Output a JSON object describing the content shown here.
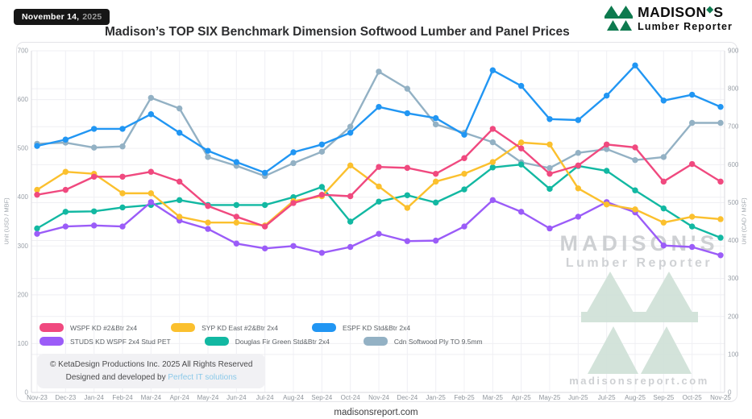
{
  "badge": {
    "date": "November 14,",
    "year": "2025"
  },
  "title": "Madison’s TOP SIX Benchmark Dimension Softwood Lumber and Panel Prices",
  "brand": {
    "name_pre": "MADISON",
    "apostrophe": "◆",
    "name_post": "S",
    "subtitle": "Lumber Reporter",
    "green": "#0E7A4F"
  },
  "watermark": {
    "line1": "MADISON'S",
    "line2": "Lumber Reporter",
    "url": "madisonsreport.com"
  },
  "copyright": {
    "line1": "© KetaDesign Productions Inc. 2025 All Rights Reserved",
    "line2_prefix": "Designed and developed by ",
    "line2_link": "Perfect IT solutions"
  },
  "footer": {
    "url": "madisonsreport.com"
  },
  "chart_data": {
    "type": "line",
    "x": [
      "Nov-23",
      "Dec-23",
      "Jan-24",
      "Feb-24",
      "Mar-24",
      "Apr-24",
      "May-24",
      "Jun-24",
      "Jul-24",
      "Aug-24",
      "Sep-24",
      "Oct-24",
      "Nov-24",
      "Dec-24",
      "Jan-25",
      "Feb-25",
      "Mar-25",
      "Apr-25",
      "May-25",
      "Jun-25",
      "Jul-25",
      "Aug-25",
      "Sep-25",
      "Oct-25",
      "Nov-25"
    ],
    "left_axis": {
      "label": "Unit (USD / MBF)",
      "min": 0,
      "max": 700,
      "tick_step": 100
    },
    "right_axis": {
      "label": "Unit (CAD / MSF)",
      "min": 0,
      "max": 900,
      "tick_step": 100
    },
    "grid": true,
    "legend_position": "bottom-left",
    "series": [
      {
        "name": "WSPF KD #2&Btr 2x4",
        "color": "#F0497F",
        "axis": "left",
        "values": [
          405,
          415,
          442,
          442,
          452,
          432,
          382,
          360,
          340,
          388,
          405,
          402,
          462,
          460,
          448,
          480,
          540,
          500,
          448,
          465,
          508,
          502,
          432,
          468,
          432
        ]
      },
      {
        "name": "SYP KD East #2&Btr 2x4",
        "color": "#FBC02E",
        "axis": "left",
        "values": [
          415,
          452,
          448,
          408,
          408,
          360,
          348,
          348,
          342,
          392,
          402,
          465,
          422,
          378,
          432,
          448,
          472,
          512,
          508,
          418,
          385,
          375,
          348,
          360,
          355
        ]
      },
      {
        "name": "ESPF KD Std&Btr 2x4",
        "color": "#2196F3",
        "axis": "left",
        "values": [
          505,
          518,
          540,
          540,
          570,
          532,
          495,
          472,
          450,
          492,
          508,
          532,
          585,
          572,
          562,
          528,
          660,
          628,
          560,
          558,
          608,
          670,
          598,
          610,
          585
        ]
      },
      {
        "name": "STUDS KD WSPF 2x4 Stud PET",
        "color": "#9B5CF8",
        "axis": "left",
        "values": [
          325,
          340,
          342,
          340,
          390,
          352,
          335,
          305,
          295,
          300,
          286,
          298,
          325,
          310,
          311,
          340,
          394,
          370,
          336,
          360,
          390,
          369,
          301,
          298,
          281
        ]
      },
      {
        "name": "Douglas Fir Green Std&Btr 2x4",
        "color": "#12B8A2",
        "axis": "left",
        "values": [
          336,
          370,
          371,
          379,
          384,
          394,
          384,
          384,
          384,
          400,
          421,
          350,
          391,
          404,
          389,
          416,
          461,
          467,
          417,
          464,
          454,
          414,
          377,
          340,
          317
        ]
      },
      {
        "name": "Cdn Softwood Ply TO 9.5mm",
        "color": "#93B1C4",
        "axis": "right",
        "values": [
          655,
          658,
          645,
          648,
          776,
          748,
          620,
          597,
          570,
          604,
          634,
          700,
          845,
          800,
          706,
          684,
          659,
          606,
          591,
          631,
          641,
          612,
          620,
          710,
          710
        ]
      }
    ]
  }
}
